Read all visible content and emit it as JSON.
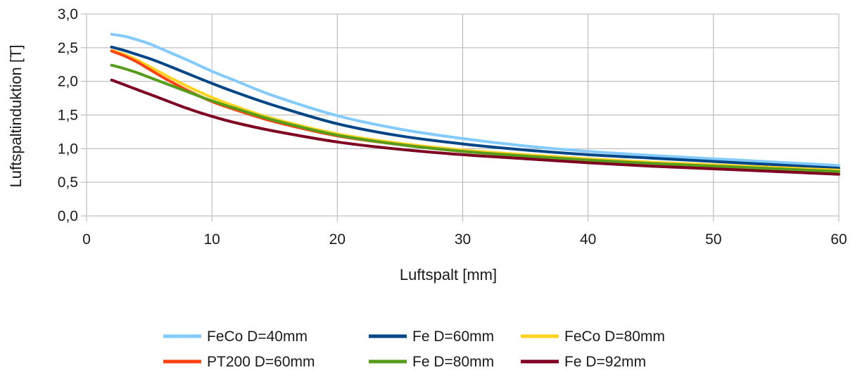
{
  "chart_data": {
    "type": "line",
    "xlabel": "Luftspalt [mm]",
    "ylabel": "Luftspaltinduktion [T]",
    "xlim": [
      0,
      60
    ],
    "ylim": [
      0,
      3
    ],
    "x_ticks": [
      "0",
      "10",
      "20",
      "30",
      "40",
      "50",
      "60"
    ],
    "y_ticks": [
      "0,0",
      "0,5",
      "1,0",
      "1,5",
      "2,0",
      "2,5",
      "3,0"
    ],
    "grid": true,
    "legend_position": "bottom",
    "series": [
      {
        "name": "FeCo D=40mm",
        "color": "#83CAFF",
        "x": [
          2,
          3,
          4,
          5,
          6,
          8,
          10,
          12,
          15,
          20,
          25,
          30,
          35,
          40,
          45,
          50,
          55,
          60
        ],
        "y": [
          2.7,
          2.67,
          2.62,
          2.56,
          2.48,
          2.32,
          2.15,
          2.0,
          1.78,
          1.49,
          1.29,
          1.15,
          1.04,
          0.96,
          0.9,
          0.85,
          0.8,
          0.75
        ]
      },
      {
        "name": "Fe D=60mm",
        "color": "#004586",
        "x": [
          2,
          3,
          4,
          5,
          6,
          8,
          10,
          12,
          15,
          20,
          25,
          30,
          35,
          40,
          45,
          50,
          55,
          60
        ],
        "y": [
          2.51,
          2.46,
          2.4,
          2.34,
          2.27,
          2.12,
          1.97,
          1.83,
          1.64,
          1.37,
          1.19,
          1.07,
          0.98,
          0.91,
          0.86,
          0.81,
          0.76,
          0.71
        ]
      },
      {
        "name": "FeCo D=80mm",
        "color": "#FFD320",
        "x": [
          2,
          3,
          4,
          5,
          6,
          8,
          10,
          12,
          15,
          20,
          25,
          30,
          35,
          40,
          45,
          50,
          55,
          60
        ],
        "y": [
          2.46,
          2.4,
          2.32,
          2.22,
          2.12,
          1.93,
          1.76,
          1.62,
          1.44,
          1.22,
          1.08,
          0.98,
          0.91,
          0.85,
          0.8,
          0.76,
          0.72,
          0.68
        ]
      },
      {
        "name": "PT200  D=60mm",
        "color": "#FF420E",
        "x": [
          2,
          3,
          4,
          5,
          6,
          8,
          10,
          12,
          15,
          20,
          25,
          30,
          35,
          40,
          45,
          50,
          55,
          60
        ],
        "y": [
          2.45,
          2.38,
          2.29,
          2.18,
          2.07,
          1.87,
          1.7,
          1.57,
          1.4,
          1.19,
          1.06,
          0.96,
          0.89,
          0.83,
          0.78,
          0.74,
          0.7,
          0.66
        ]
      },
      {
        "name": "Fe D=80mm",
        "color": "#579D1C",
        "x": [
          2,
          3,
          4,
          5,
          6,
          8,
          10,
          12,
          15,
          20,
          25,
          30,
          35,
          40,
          45,
          50,
          55,
          60
        ],
        "y": [
          2.24,
          2.19,
          2.13,
          2.06,
          1.99,
          1.85,
          1.71,
          1.59,
          1.42,
          1.2,
          1.06,
          0.96,
          0.89,
          0.83,
          0.78,
          0.74,
          0.7,
          0.66
        ]
      },
      {
        "name": "Fe D=92mm",
        "color": "#7E0021",
        "x": [
          2,
          3,
          4,
          5,
          6,
          8,
          10,
          12,
          15,
          20,
          25,
          30,
          35,
          40,
          45,
          50,
          55,
          60
        ],
        "y": [
          2.02,
          1.95,
          1.88,
          1.81,
          1.74,
          1.6,
          1.48,
          1.38,
          1.26,
          1.1,
          0.99,
          0.91,
          0.85,
          0.79,
          0.74,
          0.7,
          0.66,
          0.62
        ]
      }
    ]
  }
}
